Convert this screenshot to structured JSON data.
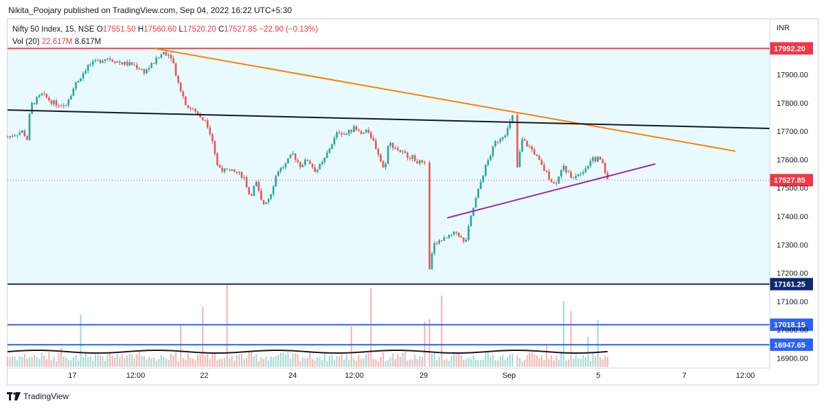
{
  "publisher_text": "Nikita_Poojary published on TradingView.com, Sep 04, 2022 16:22 UTC+5:30",
  "footer_text": "TradingView",
  "legend": {
    "symbol": "Nifty 50 Index, 15, NSE",
    "open_label": "O",
    "open": "17551.50",
    "high_label": "H",
    "high": "17560.60",
    "low_label": "L",
    "low": "17520.20",
    "close_label": "C",
    "close": "17527.85",
    "change": "−22.90 (−0.13%)",
    "vol_label": "Vol (20)",
    "vol1": "22.617M",
    "vol2": "8.617M"
  },
  "colors": {
    "up": "#26a69a",
    "down": "#ef5350",
    "resistance": "#f23645",
    "support_dark": "#0d2a6e",
    "support_blue": "#2962ff",
    "orange_trend": "#ff7f00",
    "purple_trend": "#9c27b0",
    "black_trend": "#131722",
    "zone_fill": "#e8fafd"
  },
  "chart_data": {
    "type": "candlestick",
    "currency": "INR",
    "y_ticks": [
      17900,
      17800,
      17700,
      17600,
      17500,
      17400,
      17300,
      17200,
      17100,
      17000,
      16900
    ],
    "y_range": [
      16865,
      18095
    ],
    "x_ticks": [
      "17",
      "12:00",
      "22",
      "24",
      "12:00",
      "29",
      "Sep",
      "5",
      "7",
      "12:00"
    ],
    "horizontal_levels": [
      {
        "name": "resistance",
        "value": 17992.2,
        "label": "17992.20",
        "color": "#f23645"
      },
      {
        "name": "last-price",
        "value": 17527.85,
        "label": "17527.85",
        "color": "#f23645"
      },
      {
        "name": "support-1",
        "value": 17161.25,
        "label": "17161.25",
        "color": "#0d2a6e"
      },
      {
        "name": "support-2",
        "value": 17018.15,
        "label": "17018.15",
        "color": "#2962ff"
      },
      {
        "name": "support-3",
        "value": 16947.65,
        "label": "16947.65",
        "color": "#2962ff"
      }
    ],
    "trendlines": [
      {
        "name": "orange-trendline",
        "color": "#ff7f00",
        "from": {
          "t": 0.193,
          "price": 17992
        },
        "to": {
          "t": 0.955,
          "price": 17630
        }
      },
      {
        "name": "black-trendline",
        "color": "#131722",
        "from": {
          "t": 0.0,
          "price": 17775
        },
        "to": {
          "t": 1.0,
          "price": 17710
        }
      },
      {
        "name": "purple-trendline",
        "color": "#9c27b0",
        "from": {
          "t": 0.577,
          "price": 17395
        },
        "to": {
          "t": 0.85,
          "price": 17585
        }
      }
    ],
    "price_path": [
      [
        0.0,
        17680
      ],
      [
        0.02,
        17700
      ],
      [
        0.026,
        17670
      ],
      [
        0.03,
        17790
      ],
      [
        0.045,
        17830
      ],
      [
        0.06,
        17800
      ],
      [
        0.075,
        17790
      ],
      [
        0.09,
        17870
      ],
      [
        0.105,
        17930
      ],
      [
        0.13,
        17960
      ],
      [
        0.15,
        17940
      ],
      [
        0.165,
        17935
      ],
      [
        0.18,
        17910
      ],
      [
        0.195,
        17950
      ],
      [
        0.205,
        17980
      ],
      [
        0.215,
        17965
      ],
      [
        0.225,
        17860
      ],
      [
        0.235,
        17790
      ],
      [
        0.25,
        17760
      ],
      [
        0.26,
        17740
      ],
      [
        0.268,
        17680
      ],
      [
        0.275,
        17580
      ],
      [
        0.285,
        17560
      ],
      [
        0.3,
        17555
      ],
      [
        0.31,
        17540
      ],
      [
        0.318,
        17470
      ],
      [
        0.326,
        17520
      ],
      [
        0.334,
        17440
      ],
      [
        0.344,
        17470
      ],
      [
        0.354,
        17560
      ],
      [
        0.364,
        17580
      ],
      [
        0.374,
        17620
      ],
      [
        0.384,
        17580
      ],
      [
        0.394,
        17600
      ],
      [
        0.404,
        17560
      ],
      [
        0.414,
        17590
      ],
      [
        0.424,
        17650
      ],
      [
        0.434,
        17700
      ],
      [
        0.444,
        17690
      ],
      [
        0.454,
        17710
      ],
      [
        0.464,
        17690
      ],
      [
        0.474,
        17700
      ],
      [
        0.484,
        17640
      ],
      [
        0.494,
        17560
      ],
      [
        0.5,
        17660
      ],
      [
        0.51,
        17640
      ],
      [
        0.52,
        17620
      ],
      [
        0.53,
        17610
      ],
      [
        0.54,
        17590
      ],
      [
        0.548,
        17580
      ],
      [
        0.553,
        17210
      ],
      [
        0.56,
        17310
      ],
      [
        0.575,
        17320
      ],
      [
        0.59,
        17345
      ],
      [
        0.6,
        17300
      ],
      [
        0.61,
        17420
      ],
      [
        0.625,
        17560
      ],
      [
        0.64,
        17660
      ],
      [
        0.655,
        17700
      ],
      [
        0.665,
        17770
      ],
      [
        0.668,
        17560
      ],
      [
        0.675,
        17670
      ],
      [
        0.69,
        17630
      ],
      [
        0.7,
        17580
      ],
      [
        0.71,
        17540
      ],
      [
        0.718,
        17510
      ],
      [
        0.728,
        17580
      ],
      [
        0.738,
        17540
      ],
      [
        0.748,
        17550
      ],
      [
        0.758,
        17570
      ],
      [
        0.768,
        17600
      ],
      [
        0.778,
        17605
      ],
      [
        0.788,
        17530
      ]
    ]
  }
}
